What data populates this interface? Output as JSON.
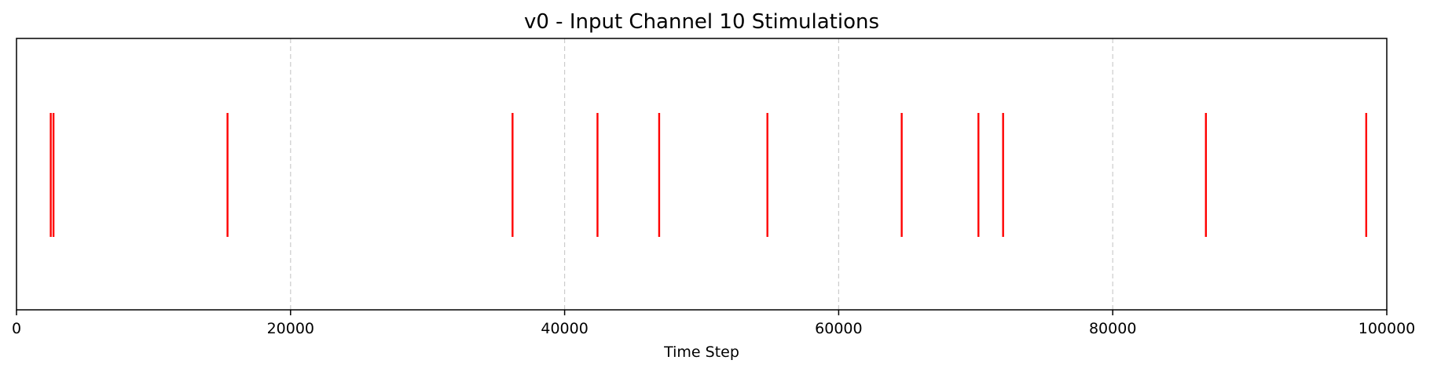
{
  "chart_data": {
    "type": "eventplot",
    "title": "v0 - Input Channel 10 Stimulations",
    "xlabel": "Time Step",
    "ylabel": "",
    "xlim": [
      0,
      100000
    ],
    "xticks": [
      0,
      20000,
      40000,
      60000,
      80000,
      100000
    ],
    "xtick_labels": [
      "0",
      "20000",
      "40000",
      "60000",
      "80000",
      "100000"
    ],
    "y_ticks_visible": false,
    "grid": "vertical dashed",
    "legend": "none",
    "series": [
      {
        "color": "#ff0000",
        "events": [
          2500,
          2700,
          15400,
          36200,
          42400,
          46900,
          54800,
          64600,
          70200,
          72000,
          86800,
          98500
        ]
      }
    ],
    "colors": {
      "event": "#ff0000",
      "grid": "#cccccc",
      "axis": "#000000",
      "background": "#ffffff"
    }
  }
}
